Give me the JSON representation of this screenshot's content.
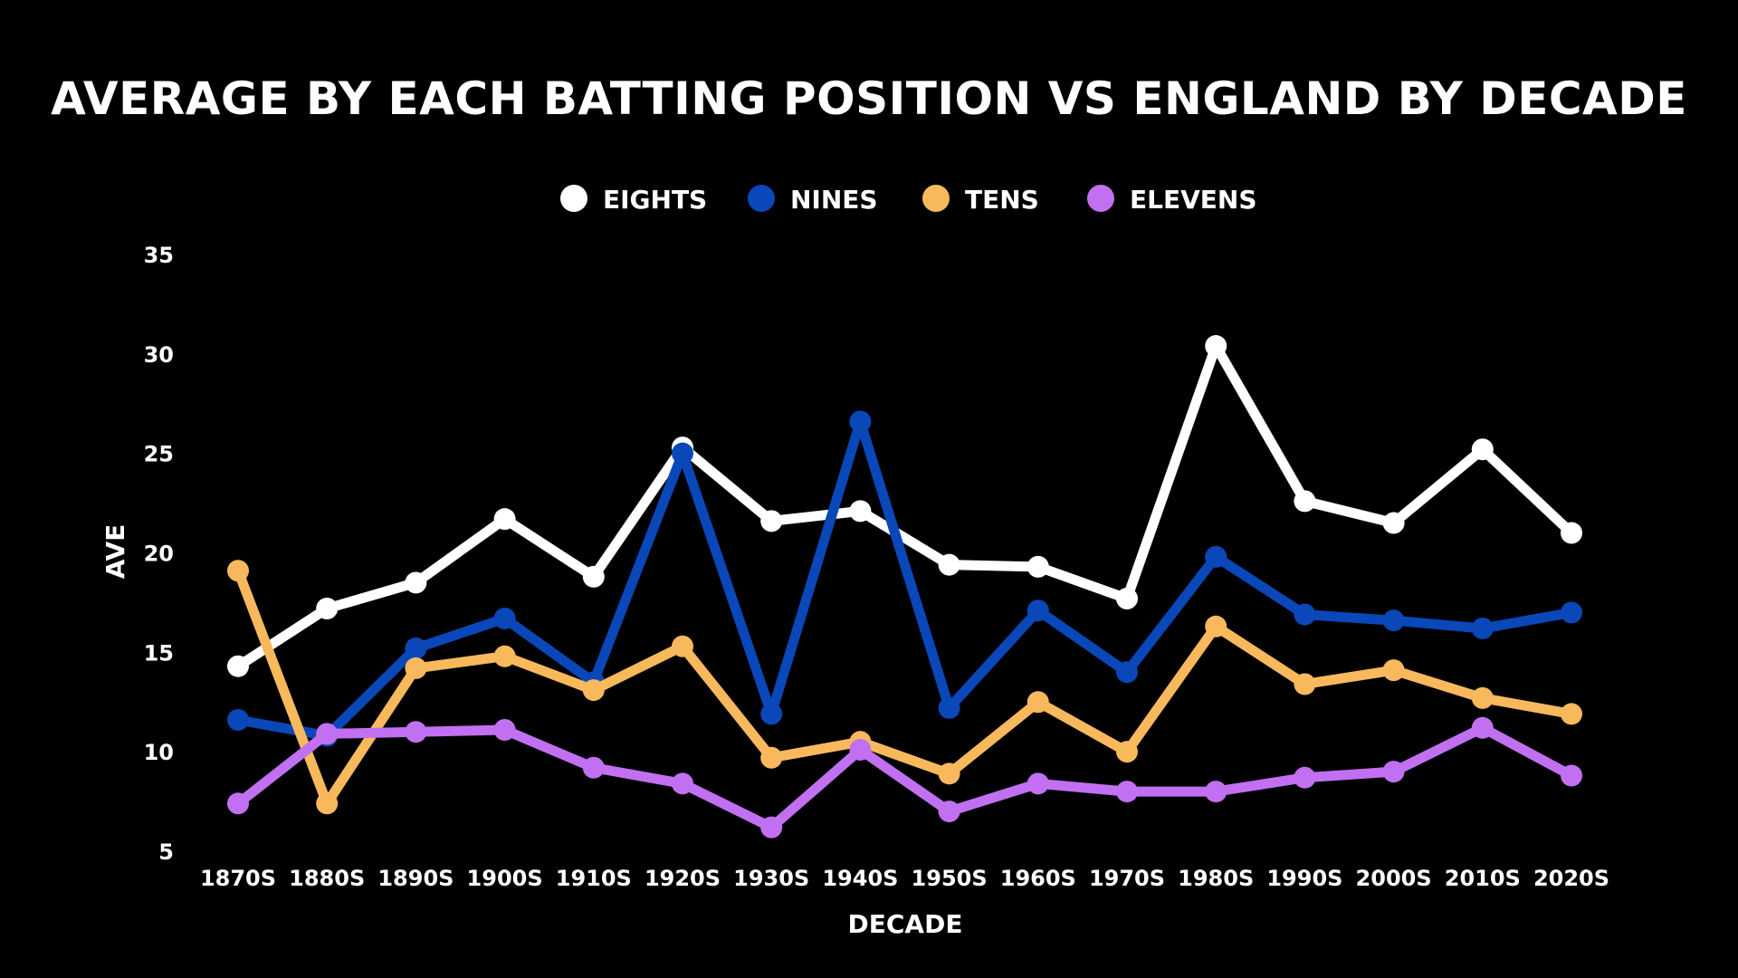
{
  "chart_data": {
    "type": "line",
    "title": "AVERAGE BY EACH BATTING POSITION VS ENGLAND BY DECADE",
    "xlabel": "DECADE",
    "ylabel": "AVE",
    "categories": [
      "1870S",
      "1880S",
      "1890S",
      "1900S",
      "1910S",
      "1920S",
      "1930S",
      "1940S",
      "1950S",
      "1960S",
      "1970S",
      "1980S",
      "1990S",
      "2000S",
      "2010S",
      "2020S"
    ],
    "ylim": [
      5,
      35
    ],
    "yticks": [
      5,
      10,
      15,
      20,
      25,
      30,
      35
    ],
    "grid": false,
    "legend_position": "top-center",
    "series": [
      {
        "name": "EIGHTS",
        "color": "#ffffff",
        "values": [
          14.3,
          17.2,
          18.5,
          21.7,
          18.8,
          25.3,
          21.6,
          22.1,
          19.4,
          19.3,
          17.7,
          30.4,
          22.6,
          21.5,
          25.2,
          21.0
        ]
      },
      {
        "name": "NINES",
        "color": "#0a47b8",
        "values": [
          11.6,
          10.8,
          15.2,
          16.7,
          13.5,
          25.0,
          11.9,
          26.6,
          12.2,
          17.1,
          14.0,
          19.8,
          16.9,
          16.6,
          16.2,
          17.0
        ]
      },
      {
        "name": "TENS",
        "color": "#f7b95c",
        "values": [
          19.1,
          7.4,
          14.2,
          14.8,
          13.1,
          15.3,
          9.7,
          10.5,
          8.9,
          12.5,
          10.0,
          16.3,
          13.4,
          14.1,
          12.7,
          11.9
        ]
      },
      {
        "name": "ELEVENS",
        "color": "#c270f2",
        "values": [
          7.4,
          10.9,
          11.0,
          11.1,
          9.2,
          8.4,
          6.2,
          10.1,
          7.0,
          8.4,
          8.0,
          8.0,
          8.7,
          9.0,
          11.2,
          8.8
        ]
      }
    ]
  }
}
